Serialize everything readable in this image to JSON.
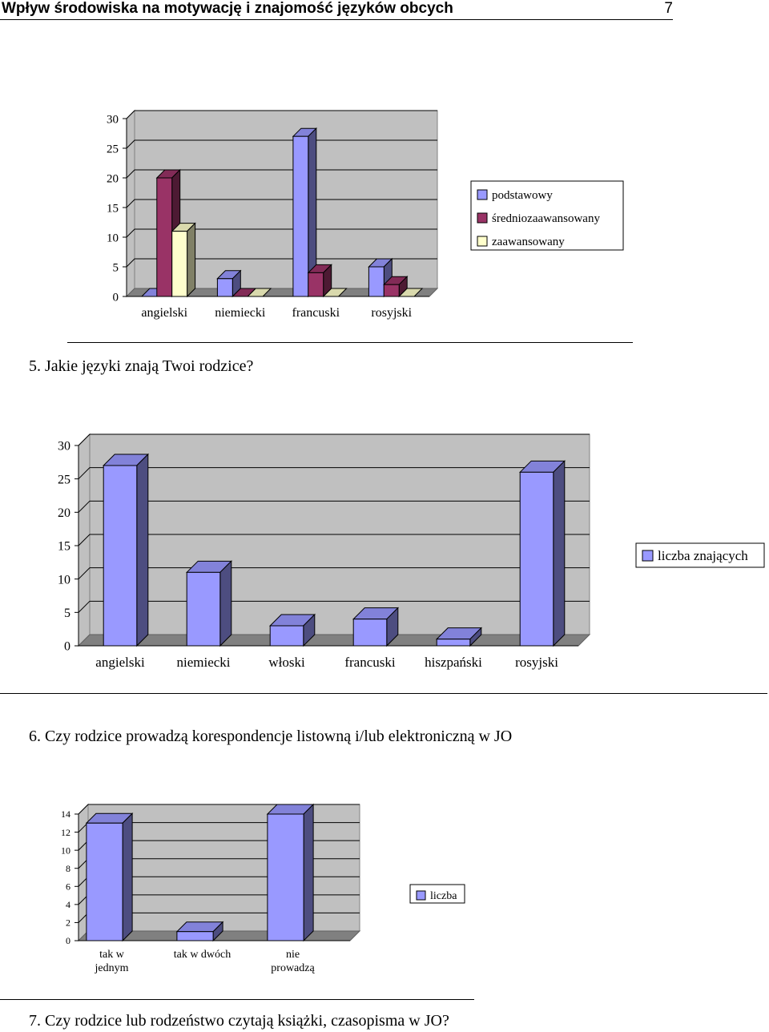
{
  "header": {
    "title": "Wpływ środowiska na motywację i znajomość języków obcych",
    "page_number": "7"
  },
  "questions": {
    "q5": "5. Jakie języki znają Twoi rodzice?",
    "q6": "6. Czy rodzice prowadzą korespondencje listowną i/lub elektroniczną w JO",
    "q7": "7. Czy rodzice lub rodzeństwo czytają książki, czasopisma w JO?"
  },
  "chart_data": [
    {
      "type": "bar",
      "categories": [
        "angielski",
        "niemiecki",
        "francuski",
        "rosyjski"
      ],
      "series": [
        {
          "name": "podstawowy",
          "values": [
            0,
            3,
            27,
            5
          ],
          "color": "#9999FF"
        },
        {
          "name": "średniozaawansowany",
          "values": [
            20,
            0,
            4,
            2
          ],
          "color": "#993366"
        },
        {
          "name": "zaawansowany",
          "values": [
            11,
            0,
            0,
            0
          ],
          "color": "#FFFFCC"
        }
      ],
      "ylim": [
        0,
        30
      ],
      "yticks": [
        0,
        5,
        10,
        15,
        20,
        25,
        30
      ],
      "grid": true,
      "legend": "right"
    },
    {
      "type": "bar",
      "categories": [
        "angielski",
        "niemiecki",
        "włoski",
        "francuski",
        "hiszpański",
        "rosyjski"
      ],
      "series": [
        {
          "name": "liczba znających",
          "values": [
            27,
            11,
            3,
            4,
            1,
            26
          ],
          "color": "#9999FF"
        }
      ],
      "ylim": [
        0,
        30
      ],
      "yticks": [
        0,
        5,
        10,
        15,
        20,
        25,
        30
      ],
      "grid": true,
      "legend": "right"
    },
    {
      "type": "bar",
      "categories": [
        [
          "tak w",
          "jednym"
        ],
        [
          "tak w dwóch"
        ],
        [
          "nie",
          "prowadzą"
        ]
      ],
      "series": [
        {
          "name": "liczba",
          "values": [
            13,
            1,
            14
          ],
          "color": "#9999FF"
        }
      ],
      "ylim": [
        0,
        14
      ],
      "yticks": [
        0,
        2,
        4,
        6,
        8,
        10,
        12,
        14
      ],
      "grid": true,
      "legend": "right"
    }
  ]
}
